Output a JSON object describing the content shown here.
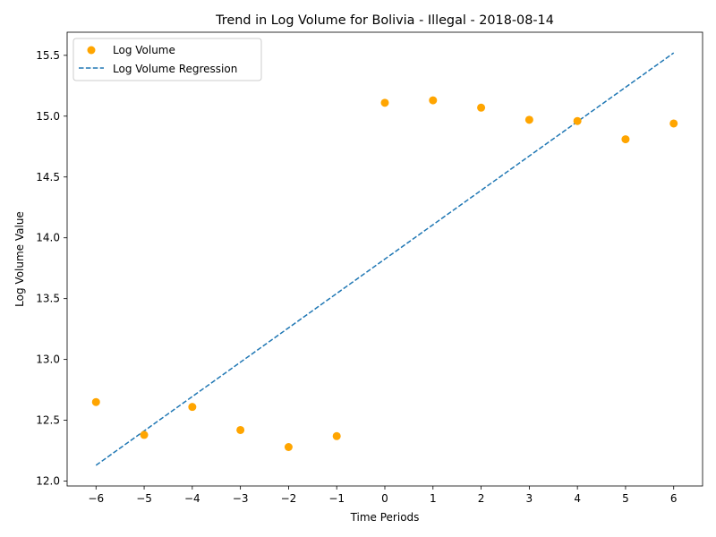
{
  "chart_data": {
    "type": "scatter",
    "title": "Trend in Log Volume for Bolivia - Illegal - 2018-08-14",
    "xlabel": "Time Periods",
    "ylabel": "Log Volume Value",
    "xlim": [
      -6.6,
      6.6
    ],
    "ylim": [
      11.96,
      15.69
    ],
    "xticks": [
      -6,
      -5,
      -4,
      -3,
      -2,
      -1,
      0,
      1,
      2,
      3,
      4,
      5,
      6
    ],
    "xtick_labels": [
      "−6",
      "−5",
      "−4",
      "−3",
      "−2",
      "−1",
      "0",
      "1",
      "2",
      "3",
      "4",
      "5",
      "6"
    ],
    "yticks": [
      12.0,
      12.5,
      13.0,
      13.5,
      14.0,
      14.5,
      15.0,
      15.5
    ],
    "ytick_labels": [
      "12.0",
      "12.5",
      "13.0",
      "13.5",
      "14.0",
      "14.5",
      "15.0",
      "15.5"
    ],
    "series": [
      {
        "name": "Log Volume",
        "kind": "scatter",
        "color": "#FFA500",
        "x": [
          -6,
          -5,
          -4,
          -3,
          -2,
          -1,
          0,
          1,
          2,
          3,
          4,
          5,
          6
        ],
        "y": [
          12.65,
          12.38,
          12.61,
          12.42,
          12.28,
          12.37,
          15.11,
          15.13,
          15.07,
          14.97,
          14.96,
          14.81,
          14.94
        ]
      },
      {
        "name": "Log Volume Regression",
        "kind": "line",
        "style": "dashed",
        "color": "#1f77b4",
        "x": [
          -6,
          6
        ],
        "y": [
          12.13,
          15.52
        ]
      }
    ],
    "legend": {
      "position": "top-left",
      "entries": [
        "Log Volume",
        "Log Volume Regression"
      ]
    },
    "grid": false
  }
}
